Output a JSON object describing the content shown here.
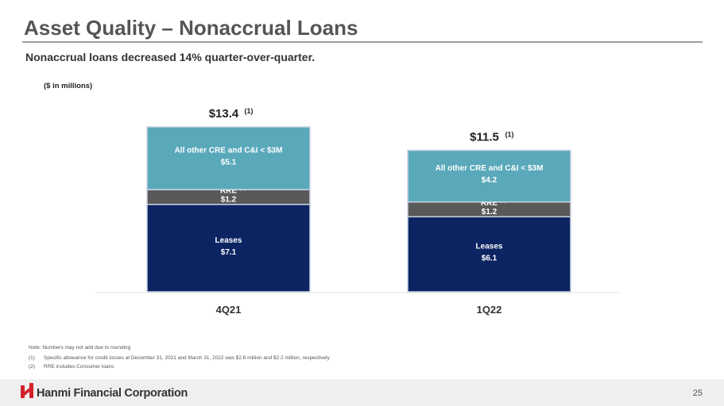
{
  "header": {
    "title": "Asset Quality – Nonaccrual Loans",
    "subtitle": "Nonaccrual loans decreased 14% quarter-over-quarter."
  },
  "chart_data": {
    "type": "stacked_bar",
    "unit_label": "($ in millions)",
    "categories": [
      "4Q21",
      "1Q22"
    ],
    "series": [
      {
        "name": "Leases",
        "color": "#0c2462",
        "values": [
          7.1,
          6.1
        ],
        "value_labels": [
          "$7.1",
          "$6.1"
        ]
      },
      {
        "name": "RRE",
        "note_marker": "(2)",
        "color": "#595959",
        "values": [
          1.2,
          1.2
        ],
        "value_labels": [
          "$1.2",
          "$1.2"
        ]
      },
      {
        "name": "All other CRE and C&I < $3M",
        "color": "#5aa9bb",
        "values": [
          5.1,
          4.2
        ],
        "value_labels": [
          "$5.1",
          "$4.2"
        ]
      }
    ],
    "totals": {
      "values": [
        13.4,
        11.5
      ],
      "value_labels": [
        "$13.4",
        "$11.5"
      ],
      "note_marker": "(1)"
    }
  },
  "footnotes": {
    "note": "Note: Numbers may not add due to rounding",
    "items": [
      {
        "marker": "(1)",
        "text": "Specific allowance for credit losses at December 31, 2021 and March 31, 2022 was $2.8 million and $2.2 million, respectively"
      },
      {
        "marker": "(2)",
        "text": "RRE includes Consumer loans"
      }
    ]
  },
  "footer": {
    "company": "Hanmi Financial Corporation",
    "page": "25"
  }
}
